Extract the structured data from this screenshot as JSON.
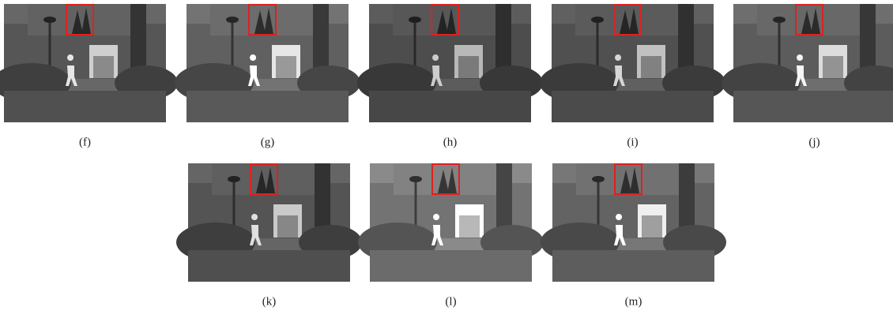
{
  "figure": {
    "panels": [
      {
        "label": "(f)"
      },
      {
        "label": "(g)"
      },
      {
        "label": "(h)"
      },
      {
        "label": "(i)"
      },
      {
        "label": "(j)"
      },
      {
        "label": "(k)"
      },
      {
        "label": "(l)"
      },
      {
        "label": "(m)"
      }
    ]
  }
}
